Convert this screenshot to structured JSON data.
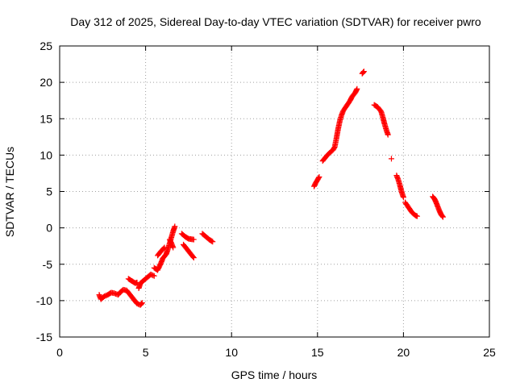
{
  "chart_data": {
    "type": "scatter",
    "title": "Day 312 of 2025, Sidereal Day-to-day VTEC variation (SDTVAR) for receiver pwro",
    "xlabel": "GPS time / hours",
    "ylabel": "SDTVAR / TECUs",
    "xlim": [
      0,
      25
    ],
    "ylim": [
      -15,
      25
    ],
    "grid": true,
    "marker": "+",
    "xticks": [
      0,
      5,
      10,
      15,
      20,
      25
    ],
    "yticks": [
      -15,
      -10,
      -5,
      0,
      5,
      10,
      15,
      20,
      25
    ],
    "xtick_labels": [
      "0",
      "5",
      "10",
      "15",
      "20",
      "25"
    ],
    "ytick_labels": [
      "-15",
      "-10",
      "-5",
      "0",
      "5",
      "10",
      "15",
      "20",
      "25"
    ],
    "series": [
      {
        "name": "SDTVAR",
        "color": "#ff0000",
        "segments": [
          [
            [
              2.3,
              -9.2
            ],
            [
              2.4,
              -9.8
            ],
            [
              2.6,
              -9.4
            ],
            [
              2.8,
              -9.2
            ],
            [
              3.0,
              -8.9
            ],
            [
              3.2,
              -9.0
            ],
            [
              3.4,
              -9.2
            ],
            [
              3.5,
              -8.9
            ],
            [
              3.7,
              -8.5
            ],
            [
              3.9,
              -8.6
            ],
            [
              4.1,
              -9.2
            ],
            [
              4.3,
              -9.8
            ],
            [
              4.5,
              -10.4
            ],
            [
              4.7,
              -10.6
            ],
            [
              4.8,
              -10.3
            ]
          ],
          [
            [
              4.0,
              -7.0
            ],
            [
              4.2,
              -7.3
            ],
            [
              4.4,
              -7.6
            ],
            [
              4.5,
              -7.5
            ]
          ],
          [
            [
              4.6,
              -8.3
            ],
            [
              4.7,
              -7.6
            ],
            [
              4.9,
              -7.2
            ],
            [
              5.1,
              -6.8
            ],
            [
              5.3,
              -6.4
            ],
            [
              5.5,
              -6.6
            ]
          ],
          [
            [
              5.5,
              -5.5
            ],
            [
              5.7,
              -5.8
            ],
            [
              5.9,
              -4.8
            ],
            [
              6.0,
              -4.2
            ],
            [
              6.2,
              -3.6
            ],
            [
              6.3,
              -2.9
            ],
            [
              6.4,
              -2.1
            ],
            [
              6.5,
              -1.3
            ],
            [
              6.6,
              -0.5
            ],
            [
              6.7,
              0.2
            ]
          ],
          [
            [
              5.7,
              -3.8
            ],
            [
              5.9,
              -3.2
            ],
            [
              6.1,
              -2.7
            ]
          ],
          [
            [
              6.4,
              -1.6
            ],
            [
              6.5,
              -2.1
            ],
            [
              6.6,
              -2.7
            ]
          ],
          [
            [
              7.1,
              -0.8
            ],
            [
              7.3,
              -1.2
            ],
            [
              7.5,
              -1.5
            ],
            [
              7.8,
              -1.6
            ]
          ],
          [
            [
              7.2,
              -2.3
            ],
            [
              7.4,
              -2.9
            ],
            [
              7.6,
              -3.5
            ],
            [
              7.8,
              -4.1
            ]
          ],
          [
            [
              8.3,
              -0.8
            ],
            [
              8.5,
              -1.2
            ],
            [
              8.7,
              -1.6
            ],
            [
              8.9,
              -1.9
            ]
          ],
          [
            [
              14.8,
              5.7
            ],
            [
              14.9,
              6.2
            ],
            [
              15.0,
              6.6
            ],
            [
              15.1,
              7.0
            ]
          ],
          [
            [
              15.3,
              9.2
            ],
            [
              15.5,
              9.8
            ],
            [
              15.7,
              10.3
            ],
            [
              15.9,
              10.7
            ],
            [
              16.0,
              11.1
            ],
            [
              16.1,
              12.3
            ],
            [
              16.2,
              13.6
            ],
            [
              16.3,
              14.7
            ],
            [
              16.4,
              15.5
            ],
            [
              16.5,
              16.1
            ],
            [
              16.7,
              16.8
            ],
            [
              16.9,
              17.5
            ],
            [
              17.0,
              18.0
            ],
            [
              17.2,
              18.6
            ],
            [
              17.3,
              19.1
            ]
          ],
          [
            [
              17.6,
              21.2
            ],
            [
              17.7,
              21.5
            ]
          ],
          [
            [
              18.3,
              16.9
            ],
            [
              18.5,
              16.6
            ],
            [
              18.7,
              16.0
            ],
            [
              18.8,
              15.2
            ],
            [
              18.9,
              14.3
            ],
            [
              19.0,
              13.5
            ],
            [
              19.1,
              12.8
            ]
          ],
          [
            [
              19.3,
              9.5
            ]
          ],
          [
            [
              19.6,
              7.2
            ],
            [
              19.7,
              6.6
            ],
            [
              19.8,
              5.8
            ],
            [
              19.9,
              4.9
            ],
            [
              20.0,
              4.2
            ]
          ],
          [
            [
              20.1,
              3.5
            ],
            [
              20.3,
              2.8
            ],
            [
              20.5,
              2.1
            ],
            [
              20.7,
              1.7
            ],
            [
              20.8,
              1.6
            ]
          ],
          [
            [
              21.7,
              4.3
            ],
            [
              21.8,
              4.0
            ],
            [
              21.9,
              3.5
            ],
            [
              22.0,
              2.9
            ],
            [
              22.1,
              2.3
            ],
            [
              22.2,
              1.8
            ],
            [
              22.3,
              1.5
            ]
          ]
        ]
      }
    ]
  }
}
